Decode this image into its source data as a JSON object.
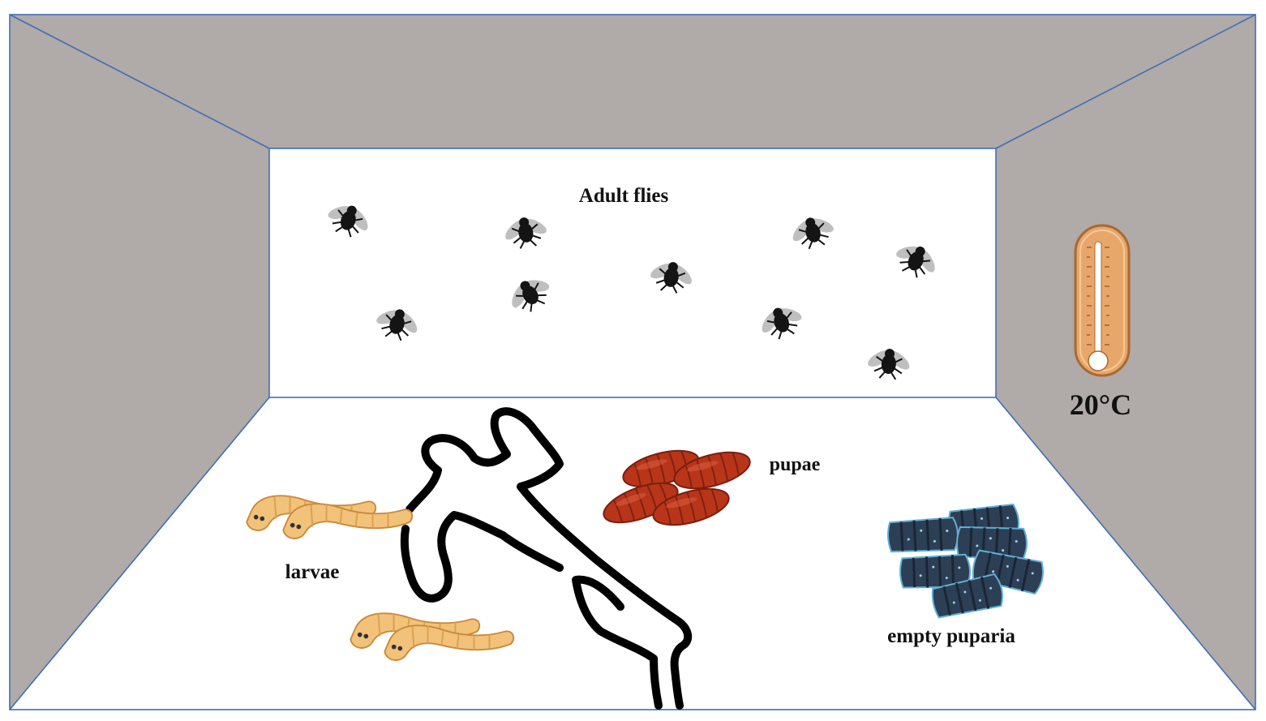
{
  "labels": {
    "adult_flies": "Adult flies",
    "pupae": "pupae",
    "larvae": "larvae",
    "empty_puparia": "empty puparia",
    "temperature": "20°C"
  },
  "colors": {
    "wall_gray": "#b0aaa8",
    "edge_blue": "#3f6fb6",
    "floor_white": "#ffffff",
    "fly_black": "#111111",
    "larva_orange": "#f2c27a",
    "pupa_red": "#b8351a",
    "puparia_blue": "#2d3f55",
    "thermometer_orange": "#e8a76a"
  },
  "icons": {
    "fly": "fly-icon",
    "larva": "larva-icon",
    "pupa": "pupa-icon",
    "puparium": "puparium-icon",
    "thermometer": "thermometer-icon",
    "body_outline": "body-outline-icon"
  }
}
